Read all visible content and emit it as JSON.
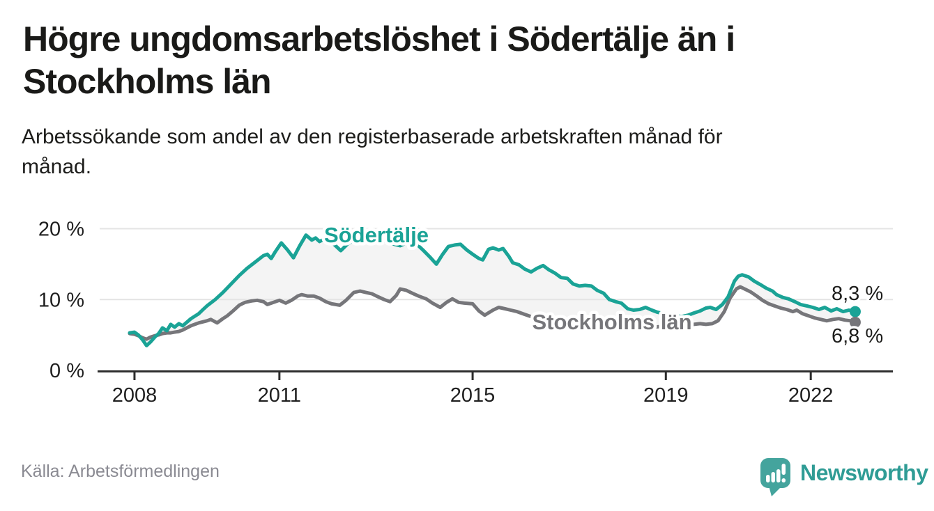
{
  "header": {
    "title": "Högre ungdomsarbetslöshet i Södertälje än i Stockholms län",
    "subtitle": "Arbetssökande som andel av den registerbaserade arbetskraften månad för månad."
  },
  "footer": {
    "source": "Källa: Arbetsförmedlingen",
    "logo_text": "Newsworthy"
  },
  "chart_data": {
    "type": "line",
    "title": "Högre ungdomsarbetslöshet i Södertälje än i Stockholms län",
    "subtitle": "Arbetssökande som andel av den registerbaserade arbetskraften månad för månad.",
    "unit": "%",
    "grid": "horizontal",
    "xlim": [
      2007.236,
      2023.7
    ],
    "ylim": [
      0,
      23.2
    ],
    "x_ticks": [
      {
        "value": 2008,
        "label": "2008"
      },
      {
        "value": 2011,
        "label": "2011"
      },
      {
        "value": 2015,
        "label": "2015"
      },
      {
        "value": 2019,
        "label": "2019"
      },
      {
        "value": 2022,
        "label": "2022"
      }
    ],
    "y_ticks": [
      {
        "value": 0,
        "label": "0 %"
      },
      {
        "value": 10,
        "label": "10 %"
      },
      {
        "value": 20,
        "label": "20 %"
      }
    ],
    "colors": {
      "fill_between": "#f4f4f4",
      "gridline": "#e4e4e4",
      "axis": "#2d2d2d",
      "tick_text": "#1f1f1f",
      "value_text": "#1d1d1b"
    },
    "series": [
      {
        "name": "Södertälje",
        "color": "#1aa396",
        "end_label": "8,3 %",
        "end_value": 8.3,
        "points": [
          [
            2007.9,
            5.3
          ],
          [
            2008.0,
            5.4
          ],
          [
            2008.08,
            5.0
          ],
          [
            2008.17,
            4.3
          ],
          [
            2008.25,
            3.5
          ],
          [
            2008.33,
            4.0
          ],
          [
            2008.42,
            4.7
          ],
          [
            2008.5,
            5.2
          ],
          [
            2008.58,
            6.0
          ],
          [
            2008.67,
            5.6
          ],
          [
            2008.75,
            6.5
          ],
          [
            2008.83,
            6.1
          ],
          [
            2008.92,
            6.6
          ],
          [
            2009.0,
            6.3
          ],
          [
            2009.17,
            7.3
          ],
          [
            2009.33,
            8.0
          ],
          [
            2009.42,
            8.6
          ],
          [
            2009.5,
            9.1
          ],
          [
            2009.67,
            10.0
          ],
          [
            2009.83,
            11.0
          ],
          [
            2010.0,
            12.2
          ],
          [
            2010.17,
            13.4
          ],
          [
            2010.33,
            14.4
          ],
          [
            2010.5,
            15.3
          ],
          [
            2010.67,
            16.2
          ],
          [
            2010.75,
            16.4
          ],
          [
            2010.83,
            15.8
          ],
          [
            2010.92,
            16.8
          ],
          [
            2011.04,
            18.0
          ],
          [
            2011.17,
            17.0
          ],
          [
            2011.29,
            15.9
          ],
          [
            2011.42,
            17.6
          ],
          [
            2011.55,
            19.1
          ],
          [
            2011.67,
            18.4
          ],
          [
            2011.75,
            18.7
          ],
          [
            2011.83,
            18.2
          ],
          [
            2011.92,
            18.5
          ],
          [
            2012.0,
            18.4
          ],
          [
            2012.13,
            17.8
          ],
          [
            2012.27,
            16.9
          ],
          [
            2012.42,
            17.9
          ],
          [
            2012.5,
            18.2
          ],
          [
            2012.63,
            18.4
          ],
          [
            2012.75,
            18.1
          ],
          [
            2012.88,
            18.5
          ],
          [
            2013.0,
            18.3
          ],
          [
            2013.13,
            18.4
          ],
          [
            2013.25,
            18.1
          ],
          [
            2013.38,
            17.8
          ],
          [
            2013.5,
            17.6
          ],
          [
            2013.63,
            18.0
          ],
          [
            2013.75,
            18.3
          ],
          [
            2013.88,
            17.6
          ],
          [
            2014.0,
            16.8
          ],
          [
            2014.13,
            15.9
          ],
          [
            2014.25,
            15.0
          ],
          [
            2014.38,
            16.4
          ],
          [
            2014.5,
            17.5
          ],
          [
            2014.63,
            17.7
          ],
          [
            2014.75,
            17.8
          ],
          [
            2014.88,
            17.0
          ],
          [
            2015.0,
            16.4
          ],
          [
            2015.13,
            15.8
          ],
          [
            2015.21,
            15.6
          ],
          [
            2015.33,
            17.1
          ],
          [
            2015.42,
            17.3
          ],
          [
            2015.54,
            17.0
          ],
          [
            2015.63,
            17.2
          ],
          [
            2015.75,
            16.1
          ],
          [
            2015.83,
            15.2
          ],
          [
            2015.96,
            14.9
          ],
          [
            2016.08,
            14.3
          ],
          [
            2016.21,
            13.9
          ],
          [
            2016.33,
            14.4
          ],
          [
            2016.46,
            14.8
          ],
          [
            2016.58,
            14.2
          ],
          [
            2016.71,
            13.7
          ],
          [
            2016.83,
            13.1
          ],
          [
            2016.96,
            13.0
          ],
          [
            2017.08,
            12.2
          ],
          [
            2017.21,
            11.9
          ],
          [
            2017.33,
            12.0
          ],
          [
            2017.46,
            11.9
          ],
          [
            2017.58,
            11.3
          ],
          [
            2017.71,
            10.9
          ],
          [
            2017.83,
            10.0
          ],
          [
            2017.96,
            9.7
          ],
          [
            2018.08,
            9.5
          ],
          [
            2018.21,
            8.7
          ],
          [
            2018.33,
            8.5
          ],
          [
            2018.46,
            8.6
          ],
          [
            2018.58,
            8.9
          ],
          [
            2018.71,
            8.5
          ],
          [
            2018.83,
            8.2
          ],
          [
            2018.96,
            8.0
          ],
          [
            2019.08,
            7.8
          ],
          [
            2019.21,
            7.7
          ],
          [
            2019.33,
            7.6
          ],
          [
            2019.46,
            7.8
          ],
          [
            2019.58,
            8.1
          ],
          [
            2019.71,
            8.4
          ],
          [
            2019.83,
            8.8
          ],
          [
            2019.92,
            8.9
          ],
          [
            2020.04,
            8.6
          ],
          [
            2020.17,
            9.3
          ],
          [
            2020.29,
            10.4
          ],
          [
            2020.42,
            12.6
          ],
          [
            2020.5,
            13.3
          ],
          [
            2020.58,
            13.5
          ],
          [
            2020.71,
            13.2
          ],
          [
            2020.83,
            12.6
          ],
          [
            2020.96,
            12.1
          ],
          [
            2021.08,
            11.6
          ],
          [
            2021.21,
            11.2
          ],
          [
            2021.29,
            10.7
          ],
          [
            2021.42,
            10.3
          ],
          [
            2021.54,
            10.1
          ],
          [
            2021.67,
            9.7
          ],
          [
            2021.79,
            9.3
          ],
          [
            2021.92,
            9.1
          ],
          [
            2022.04,
            8.9
          ],
          [
            2022.17,
            8.6
          ],
          [
            2022.29,
            8.9
          ],
          [
            2022.42,
            8.4
          ],
          [
            2022.54,
            8.7
          ],
          [
            2022.67,
            8.3
          ],
          [
            2022.79,
            8.5
          ],
          [
            2022.92,
            8.3
          ]
        ]
      },
      {
        "name": "Stockholms län",
        "color": "#76767a",
        "end_label": "6,8 %",
        "end_value": 6.8,
        "points": [
          [
            2007.9,
            5.2
          ],
          [
            2008.0,
            5.1
          ],
          [
            2008.08,
            4.9
          ],
          [
            2008.17,
            4.6
          ],
          [
            2008.25,
            4.4
          ],
          [
            2008.33,
            4.7
          ],
          [
            2008.42,
            4.9
          ],
          [
            2008.5,
            5.0
          ],
          [
            2008.58,
            5.2
          ],
          [
            2008.67,
            5.3
          ],
          [
            2008.75,
            5.3
          ],
          [
            2008.83,
            5.4
          ],
          [
            2008.92,
            5.5
          ],
          [
            2009.0,
            5.7
          ],
          [
            2009.17,
            6.3
          ],
          [
            2009.33,
            6.7
          ],
          [
            2009.5,
            7.0
          ],
          [
            2009.58,
            7.2
          ],
          [
            2009.71,
            6.7
          ],
          [
            2009.83,
            7.3
          ],
          [
            2009.92,
            7.7
          ],
          [
            2010.04,
            8.4
          ],
          [
            2010.17,
            9.2
          ],
          [
            2010.29,
            9.6
          ],
          [
            2010.42,
            9.8
          ],
          [
            2010.54,
            9.9
          ],
          [
            2010.67,
            9.7
          ],
          [
            2010.75,
            9.3
          ],
          [
            2010.88,
            9.6
          ],
          [
            2011.0,
            9.9
          ],
          [
            2011.13,
            9.5
          ],
          [
            2011.25,
            9.9
          ],
          [
            2011.38,
            10.5
          ],
          [
            2011.46,
            10.7
          ],
          [
            2011.58,
            10.5
          ],
          [
            2011.71,
            10.5
          ],
          [
            2011.83,
            10.2
          ],
          [
            2011.96,
            9.7
          ],
          [
            2012.08,
            9.4
          ],
          [
            2012.25,
            9.2
          ],
          [
            2012.38,
            9.9
          ],
          [
            2012.54,
            11.0
          ],
          [
            2012.67,
            11.2
          ],
          [
            2012.79,
            11.0
          ],
          [
            2012.92,
            10.8
          ],
          [
            2013.04,
            10.4
          ],
          [
            2013.17,
            10.0
          ],
          [
            2013.29,
            9.7
          ],
          [
            2013.42,
            10.6
          ],
          [
            2013.5,
            11.5
          ],
          [
            2013.63,
            11.3
          ],
          [
            2013.75,
            10.9
          ],
          [
            2013.88,
            10.5
          ],
          [
            2014.04,
            10.1
          ],
          [
            2014.17,
            9.5
          ],
          [
            2014.33,
            8.9
          ],
          [
            2014.46,
            9.6
          ],
          [
            2014.58,
            10.1
          ],
          [
            2014.71,
            9.6
          ],
          [
            2014.83,
            9.5
          ],
          [
            2015.0,
            9.4
          ],
          [
            2015.13,
            8.4
          ],
          [
            2015.25,
            7.8
          ],
          [
            2015.42,
            8.5
          ],
          [
            2015.54,
            8.9
          ],
          [
            2015.67,
            8.7
          ],
          [
            2015.79,
            8.5
          ],
          [
            2015.92,
            8.3
          ],
          [
            2016.08,
            7.9
          ],
          [
            2016.25,
            7.5
          ],
          [
            2016.42,
            7.4
          ],
          [
            2016.58,
            7.2
          ],
          [
            2016.75,
            7.0
          ],
          [
            2016.92,
            6.9
          ],
          [
            2017.08,
            6.8
          ],
          [
            2017.25,
            6.6
          ],
          [
            2017.42,
            6.5
          ],
          [
            2017.58,
            6.4
          ],
          [
            2017.75,
            6.3
          ],
          [
            2017.92,
            6.2
          ],
          [
            2018.08,
            6.1
          ],
          [
            2018.25,
            6.0
          ],
          [
            2018.42,
            6.0
          ],
          [
            2018.58,
            6.1
          ],
          [
            2018.75,
            6.1
          ],
          [
            2018.92,
            6.2
          ],
          [
            2019.08,
            6.3
          ],
          [
            2019.25,
            6.3
          ],
          [
            2019.42,
            6.4
          ],
          [
            2019.58,
            6.5
          ],
          [
            2019.71,
            6.6
          ],
          [
            2019.83,
            6.5
          ],
          [
            2019.96,
            6.6
          ],
          [
            2020.08,
            7.0
          ],
          [
            2020.21,
            8.3
          ],
          [
            2020.33,
            10.2
          ],
          [
            2020.46,
            11.5
          ],
          [
            2020.54,
            11.8
          ],
          [
            2020.63,
            11.5
          ],
          [
            2020.75,
            11.1
          ],
          [
            2020.88,
            10.5
          ],
          [
            2021.0,
            9.9
          ],
          [
            2021.13,
            9.4
          ],
          [
            2021.25,
            9.1
          ],
          [
            2021.38,
            8.8
          ],
          [
            2021.5,
            8.6
          ],
          [
            2021.63,
            8.3
          ],
          [
            2021.71,
            8.5
          ],
          [
            2021.83,
            8.0
          ],
          [
            2021.96,
            7.7
          ],
          [
            2022.08,
            7.4
          ],
          [
            2022.21,
            7.2
          ],
          [
            2022.33,
            7.0
          ],
          [
            2022.46,
            7.2
          ],
          [
            2022.58,
            7.3
          ],
          [
            2022.71,
            7.1
          ],
          [
            2022.83,
            7.0
          ],
          [
            2022.92,
            6.8
          ]
        ]
      }
    ]
  }
}
